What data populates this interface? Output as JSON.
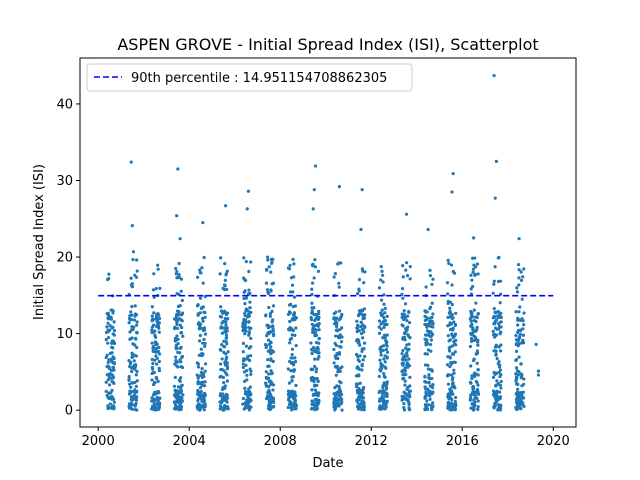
{
  "chart_data": {
    "type": "scatter",
    "title": "ASPEN GROVE - Initial Spread Index (ISI), Scatterplot",
    "xlabel": "Date",
    "ylabel": "Initial Spread Index (ISI)",
    "xlim": [
      1999.2,
      2021.0
    ],
    "ylim": [
      -2.2,
      46.0
    ],
    "x_ticks": [
      2000,
      2004,
      2008,
      2012,
      2016,
      2020
    ],
    "x_tick_labels": [
      "2000",
      "2004",
      "2008",
      "2012",
      "2016",
      "2020"
    ],
    "y_ticks": [
      0,
      10,
      20,
      30,
      40
    ],
    "y_tick_labels": [
      "0",
      "10",
      "20",
      "30",
      "40"
    ],
    "grid": false,
    "legend_position": "top-left",
    "series_color": "#1f77b4",
    "reference_line": {
      "label": "90th percentile : 14.951154708862305",
      "value": 14.951154708862305,
      "color": "#0000ff",
      "style": "dashed"
    },
    "seasons": [
      {
        "year": 2000,
        "start": 2000.35,
        "end": 2000.72,
        "count": 110,
        "mid": 5.0
      },
      {
        "year": 2001,
        "start": 2001.35,
        "end": 2001.72,
        "count": 120,
        "mid": 6.0
      },
      {
        "year": 2002,
        "start": 2002.35,
        "end": 2002.72,
        "count": 120,
        "mid": 6.5
      },
      {
        "year": 2003,
        "start": 2003.35,
        "end": 2003.72,
        "count": 125,
        "mid": 7.0
      },
      {
        "year": 2004,
        "start": 2004.35,
        "end": 2004.72,
        "count": 120,
        "mid": 6.0
      },
      {
        "year": 2005,
        "start": 2005.35,
        "end": 2005.72,
        "count": 115,
        "mid": 5.0
      },
      {
        "year": 2006,
        "start": 2006.35,
        "end": 2006.72,
        "count": 120,
        "mid": 6.5
      },
      {
        "year": 2007,
        "start": 2007.35,
        "end": 2007.72,
        "count": 125,
        "mid": 7.0
      },
      {
        "year": 2008,
        "start": 2008.35,
        "end": 2008.72,
        "count": 115,
        "mid": 6.0
      },
      {
        "year": 2009,
        "start": 2009.35,
        "end": 2009.72,
        "count": 125,
        "mid": 7.0
      },
      {
        "year": 2010,
        "start": 2010.35,
        "end": 2010.72,
        "count": 115,
        "mid": 6.0
      },
      {
        "year": 2011,
        "start": 2011.35,
        "end": 2011.72,
        "count": 120,
        "mid": 6.5
      },
      {
        "year": 2012,
        "start": 2012.35,
        "end": 2012.72,
        "count": 120,
        "mid": 6.5
      },
      {
        "year": 2013,
        "start": 2013.35,
        "end": 2013.72,
        "count": 115,
        "mid": 6.0
      },
      {
        "year": 2014,
        "start": 2014.35,
        "end": 2014.72,
        "count": 120,
        "mid": 6.5
      },
      {
        "year": 2015,
        "start": 2015.35,
        "end": 2015.72,
        "count": 120,
        "mid": 6.5
      },
      {
        "year": 2016,
        "start": 2016.35,
        "end": 2016.72,
        "count": 115,
        "mid": 6.0
      },
      {
        "year": 2017,
        "start": 2017.35,
        "end": 2017.72,
        "count": 120,
        "mid": 7.0
      },
      {
        "year": 2018,
        "start": 2018.35,
        "end": 2018.72,
        "count": 120,
        "mid": 7.0
      }
    ],
    "outliers": [
      {
        "x": 2001.45,
        "y": 32.4
      },
      {
        "x": 2001.5,
        "y": 24.1
      },
      {
        "x": 2001.55,
        "y": 20.7
      },
      {
        "x": 2003.5,
        "y": 31.5
      },
      {
        "x": 2003.45,
        "y": 25.4
      },
      {
        "x": 2003.6,
        "y": 22.4
      },
      {
        "x": 2004.6,
        "y": 24.5
      },
      {
        "x": 2005.6,
        "y": 26.7
      },
      {
        "x": 2006.6,
        "y": 28.6
      },
      {
        "x": 2006.55,
        "y": 26.3
      },
      {
        "x": 2009.55,
        "y": 31.9
      },
      {
        "x": 2009.5,
        "y": 28.8
      },
      {
        "x": 2009.45,
        "y": 26.3
      },
      {
        "x": 2010.6,
        "y": 29.2
      },
      {
        "x": 2011.6,
        "y": 28.8
      },
      {
        "x": 2011.55,
        "y": 23.6
      },
      {
        "x": 2013.55,
        "y": 25.6
      },
      {
        "x": 2014.5,
        "y": 23.6
      },
      {
        "x": 2015.6,
        "y": 30.9
      },
      {
        "x": 2015.55,
        "y": 28.5
      },
      {
        "x": 2016.5,
        "y": 22.5
      },
      {
        "x": 2017.4,
        "y": 43.7
      },
      {
        "x": 2017.5,
        "y": 32.5
      },
      {
        "x": 2017.45,
        "y": 27.7
      },
      {
        "x": 2018.5,
        "y": 22.4
      },
      {
        "x": 2019.25,
        "y": 8.6
      },
      {
        "x": 2019.35,
        "y": 5.1
      },
      {
        "x": 2019.35,
        "y": 4.6
      }
    ]
  }
}
